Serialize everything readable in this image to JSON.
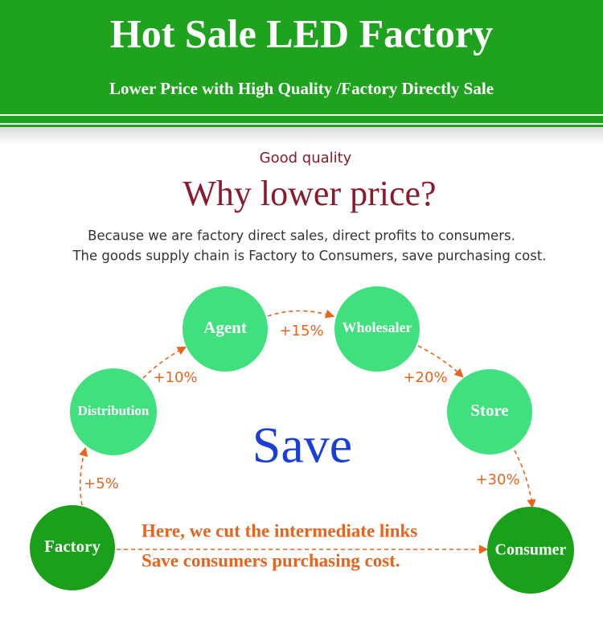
{
  "header": {
    "title": "Hot Sale LED Factory",
    "subtitle": "Lower Price with High Quality /Factory Directly Sale"
  },
  "section": {
    "kicker": "Good quality",
    "heading": "Why lower price?",
    "lines": [
      "Because we are factory direct sales, direct profits to consumers.",
      "The goods supply chain is Factory to Consumers, save purchasing cost."
    ]
  },
  "nodes": [
    {
      "label": "Factory"
    },
    {
      "label": "Distribution"
    },
    {
      "label": "Agent"
    },
    {
      "label": "Wholesaler"
    },
    {
      "label": "Store"
    },
    {
      "label": "Consumer"
    }
  ],
  "edges": [
    {
      "label": "+5%"
    },
    {
      "label": "+10%"
    },
    {
      "label": "+15%"
    },
    {
      "label": "+20%"
    },
    {
      "label": "+30%"
    }
  ],
  "center": "Save",
  "shortcut": [
    "Here, we cut the intermediate links",
    "Save consumers purchasing cost."
  ]
}
